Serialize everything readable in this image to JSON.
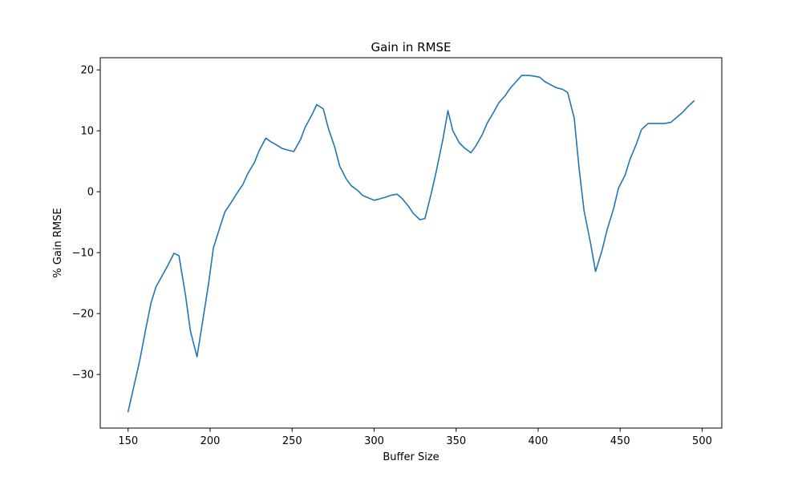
{
  "chart_data": {
    "type": "line",
    "title": "Gain in RMSE",
    "xlabel": "Buffer Size",
    "ylabel": "% Gain RMSE",
    "xlim": [
      133,
      512
    ],
    "ylim": [
      -38.8,
      22.0
    ],
    "xticks": [
      150,
      200,
      250,
      300,
      350,
      400,
      450,
      500
    ],
    "yticks": [
      -30,
      -20,
      -10,
      0,
      10,
      20
    ],
    "xtick_labels": [
      "150",
      "200",
      "250",
      "300",
      "350",
      "400",
      "450",
      "500"
    ],
    "ytick_labels": [
      "−30",
      "−20",
      "−10",
      "0",
      "10",
      "20"
    ],
    "grid": false,
    "series": [
      {
        "color": "#1f77b4",
        "x": [
          150,
          157,
          161,
          164,
          167,
          174,
          178,
          181,
          185,
          188,
          192,
          195,
          199,
          202,
          206,
          209,
          213,
          216,
          220,
          223,
          227,
          230,
          234,
          237,
          241,
          244,
          248,
          251,
          255,
          258,
          262,
          265,
          269,
          272,
          276,
          279,
          283,
          286,
          290,
          293,
          300,
          303,
          307,
          310,
          314,
          317,
          321,
          324,
          328,
          331,
          335,
          338,
          342,
          345,
          348,
          352,
          355,
          359,
          362,
          366,
          369,
          373,
          376,
          380,
          383,
          387,
          390,
          394,
          397,
          401,
          404,
          408,
          411,
          415,
          418,
          422,
          425,
          428,
          432,
          435,
          439,
          442,
          446,
          449,
          453,
          456,
          460,
          463,
          467,
          470,
          474,
          477,
          481,
          484,
          488,
          491,
          495
        ],
        "y": [
          -36.1,
          -27.8,
          -22.2,
          -18.2,
          -15.6,
          -12.2,
          -10.1,
          -10.5,
          -17.0,
          -22.9,
          -27.1,
          -22.0,
          -15.2,
          -9.2,
          -5.8,
          -3.3,
          -1.7,
          -0.4,
          1.2,
          3.0,
          4.8,
          6.8,
          8.8,
          8.2,
          7.6,
          7.1,
          6.8,
          6.6,
          8.5,
          10.6,
          12.6,
          14.3,
          13.6,
          10.5,
          7.3,
          4.2,
          2.1,
          1.0,
          0.2,
          -0.6,
          -1.4,
          -1.2,
          -0.9,
          -0.6,
          -0.4,
          -1.1,
          -2.4,
          -3.6,
          -4.6,
          -4.4,
          -0.1,
          3.5,
          8.7,
          13.3,
          10.0,
          8.0,
          7.2,
          6.4,
          7.5,
          9.4,
          11.3,
          13.1,
          14.6,
          15.8,
          17.0,
          18.2,
          19.1,
          19.1,
          19.0,
          18.8,
          18.1,
          17.5,
          17.1,
          16.8,
          16.3,
          12.1,
          3.8,
          -3.1,
          -8.5,
          -13.1,
          -9.6,
          -6.3,
          -2.8,
          0.6,
          2.7,
          5.3,
          7.9,
          10.2,
          11.2,
          11.2,
          11.2,
          11.2,
          11.4,
          12.1,
          13.0,
          13.9,
          14.9
        ]
      }
    ]
  }
}
